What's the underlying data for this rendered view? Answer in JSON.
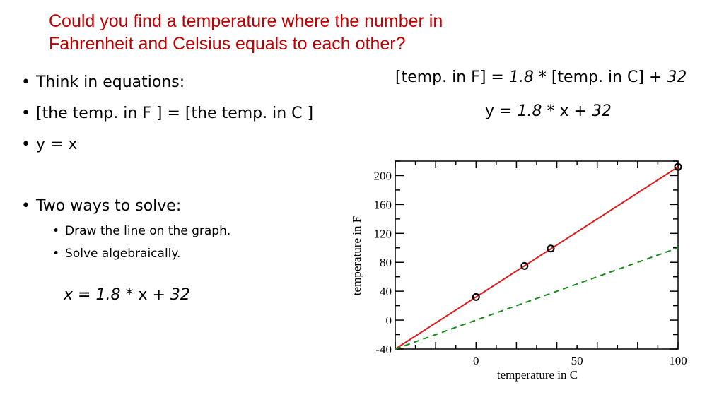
{
  "title": {
    "line1": "Could you find a temperature where the number in",
    "line2": "Fahrenheit and Celsius equals to each other?"
  },
  "bullets": [
    "Think in equations:",
    "[the temp. in F ]   =  [the temp. in C ]",
    "y = x",
    "Two ways to solve:"
  ],
  "sub_bullets": [
    "Draw the line on the graph.",
    "Solve algebraically."
  ],
  "equation_left": {
    "lhs": "x = ",
    "coef": "1.8",
    "mid": " * x  +  ",
    "const": "32"
  },
  "equation_right_1": {
    "lhs": "[temp. in F] =  ",
    "coef": "1.8",
    "mid": " * [temp. in C]  +  ",
    "const": "32"
  },
  "equation_right_2": {
    "lhs": "y =  ",
    "coef": "1.8",
    "mid": " * x  +  ",
    "const": "32"
  },
  "chart_data": {
    "type": "line",
    "xlabel": "temperature in C",
    "ylabel": "temperature in F",
    "xlim": [
      -40,
      100
    ],
    "ylim": [
      -40,
      220
    ],
    "x_ticks": [
      0,
      50,
      100
    ],
    "y_ticks": [
      -40,
      0,
      40,
      80,
      120,
      160,
      200
    ],
    "grid": false,
    "series": [
      {
        "style": "solid",
        "color": "#e0191b",
        "x": [
          -40,
          100
        ],
        "y": [
          -40,
          212
        ]
      },
      {
        "style": "dashed",
        "color": "#1a8a1a",
        "x": [
          -40,
          100
        ],
        "y": [
          -40,
          100
        ]
      }
    ],
    "points": {
      "color": "#000000",
      "x": [
        0,
        24,
        37,
        100
      ],
      "y": [
        32,
        75,
        99,
        212
      ]
    }
  }
}
